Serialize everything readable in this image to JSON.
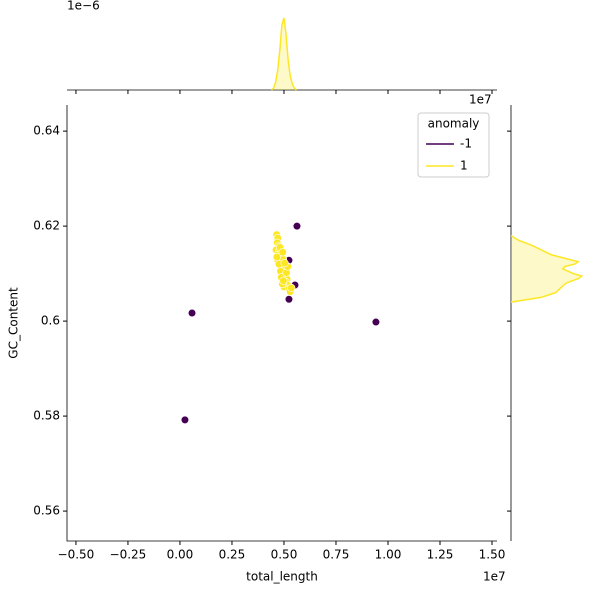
{
  "chart_data": [
    {
      "type": "scatter",
      "x_label": "total_length",
      "y_label": "GC_Content",
      "x_offset_text": "1e7",
      "xlim": [
        -0.543,
        1.524
      ],
      "ylim": [
        0.5537,
        0.6455
      ],
      "xticks": [
        {
          "value": -0.5,
          "label": "−0.50"
        },
        {
          "value": -0.25,
          "label": "−0.25"
        },
        {
          "value": 0,
          "label": "0.00"
        },
        {
          "value": 0.25,
          "label": "0.25"
        },
        {
          "value": 0.5,
          "label": "0.50"
        },
        {
          "value": 0.75,
          "label": "0.75"
        },
        {
          "value": 1,
          "label": "1.00"
        },
        {
          "value": 1.25,
          "label": "1.25"
        },
        {
          "value": 1.5,
          "label": "1.50"
        }
      ],
      "yticks": [
        0.56,
        0.58,
        0.6,
        0.62,
        0.64
      ],
      "legend_title": "anomaly",
      "legend": "upper right",
      "series": [
        {
          "name": "-1",
          "color": "#440154",
          "x": [
            0.024,
            0.058,
            0.5625,
            0.942,
            0.524,
            0.524,
            0.553
          ],
          "values": [
            0.5792,
            0.6017,
            0.62,
            0.5998,
            0.6046,
            0.6128,
            0.6076
          ]
        },
        {
          "name": "1",
          "color": "#fde725",
          "x": [
            0.465,
            0.47,
            0.468,
            0.475,
            0.462,
            0.478,
            0.472,
            0.48,
            0.485,
            0.47,
            0.49,
            0.495,
            0.488,
            0.5,
            0.505,
            0.498,
            0.51,
            0.515,
            0.508,
            0.52,
            0.5,
            0.492,
            0.483,
            0.476,
            0.487,
            0.497,
            0.512,
            0.525,
            0.53,
            0.535,
            0.518,
            0.503,
            0.481,
            0.466,
            0.494
          ],
          "values": [
            0.6182,
            0.6175,
            0.6165,
            0.6158,
            0.615,
            0.6148,
            0.614,
            0.6135,
            0.6142,
            0.6128,
            0.6125,
            0.613,
            0.6115,
            0.6108,
            0.6112,
            0.6098,
            0.6095,
            0.6088,
            0.6082,
            0.6075,
            0.6072,
            0.6078,
            0.6105,
            0.612,
            0.6092,
            0.6085,
            0.6102,
            0.6068,
            0.6062,
            0.607,
            0.6115,
            0.6122,
            0.6155,
            0.6135,
            0.6145
          ]
        }
      ]
    },
    {
      "type": "kde",
      "orientation": "vertical",
      "y_offset_text": "1e−6",
      "xlim": [
        -0.543,
        1.524
      ],
      "ylim": [
        0,
        1.5
      ],
      "x": [
        0.44,
        0.45,
        0.46,
        0.47,
        0.48,
        0.49,
        0.5,
        0.51,
        0.52,
        0.53,
        0.54,
        0.55,
        0.56
      ],
      "series": [
        {
          "color": "#fde725",
          "values": [
            0,
            0.04,
            0.16,
            0.4,
            0.8,
            1.3,
            1.44,
            1.1,
            0.6,
            0.28,
            0.12,
            0.04,
            0
          ]
        }
      ]
    },
    {
      "type": "kde",
      "orientation": "horizontal",
      "x_offset_text": "1e7",
      "ylim": [
        0.5537,
        0.6455
      ],
      "xlim": [
        0,
        120
      ],
      "x": [
        0.604,
        0.605,
        0.606,
        0.607,
        0.608,
        0.609,
        0.6095,
        0.61,
        0.611,
        0.6115,
        0.612,
        0.6125,
        0.613,
        0.614,
        0.615,
        0.616,
        0.617,
        0.618
      ],
      "series": [
        {
          "color": "#fde725",
          "values": [
            0,
            43,
            64,
            71,
            79,
            97,
            101,
            89,
            74,
            77,
            91,
            96,
            83,
            57,
            43,
            29,
            11,
            0
          ]
        }
      ]
    }
  ]
}
